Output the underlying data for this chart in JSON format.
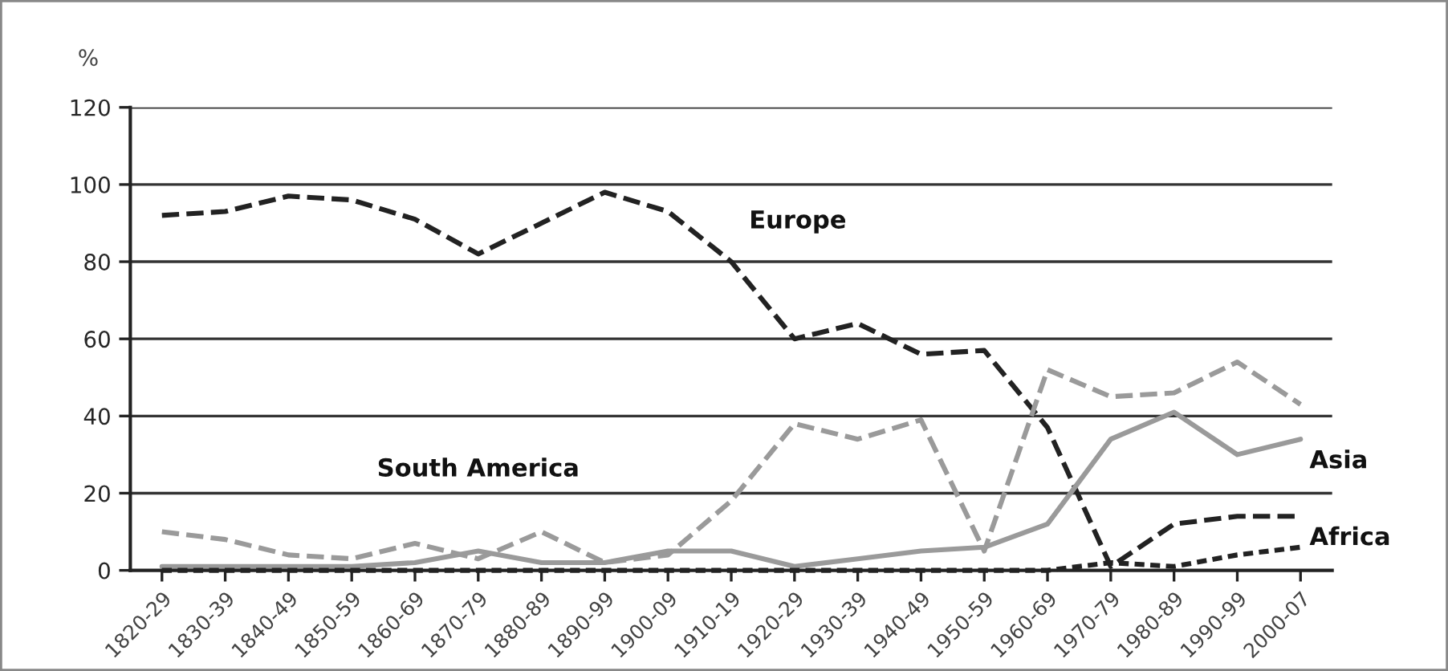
{
  "chart_data": {
    "type": "line",
    "categories": [
      "1820-29",
      "1830-39",
      "1840-49",
      "1850-59",
      "1860-69",
      "1870-79",
      "1880-89",
      "1890-99",
      "1900-09",
      "1910-19",
      "1920-29",
      "1930-39",
      "1940-49",
      "1950-59",
      "1960-69",
      "1970-79",
      "1980-89",
      "1990-99",
      "2000-07"
    ],
    "ylabel": "%",
    "ylim": [
      0,
      120
    ],
    "yticks": [
      0,
      20,
      40,
      60,
      80,
      100,
      120
    ],
    "grid": "y",
    "legend": false,
    "marker": "none",
    "series": [
      {
        "name": "Europe",
        "color": "#222222",
        "line_style": "dashed",
        "values": [
          92,
          93,
          97,
          96,
          91,
          82,
          90,
          98,
          93,
          80,
          60,
          64,
          56,
          57,
          37,
          1,
          12,
          14,
          14
        ]
      },
      {
        "name": "South America",
        "color": "#9a9a9a",
        "line_style": "dashed",
        "values": [
          10,
          8,
          4,
          3,
          7,
          3,
          10,
          2,
          4,
          18,
          38,
          34,
          39,
          5,
          52,
          45,
          46,
          54,
          43
        ]
      },
      {
        "name": "Asia",
        "color": "#9a9a9a",
        "line_style": "solid",
        "values": [
          1,
          1,
          1,
          1,
          2,
          5,
          2,
          2,
          5,
          5,
          1,
          3,
          5,
          6,
          12,
          34,
          41,
          30,
          34
        ]
      },
      {
        "name": "Africa",
        "color": "#222222",
        "line_style": "dotted",
        "values": [
          0,
          0,
          0,
          0,
          0,
          0,
          0,
          0,
          0,
          0,
          0,
          0,
          0,
          0,
          0,
          2,
          1,
          4,
          6
        ]
      }
    ]
  }
}
